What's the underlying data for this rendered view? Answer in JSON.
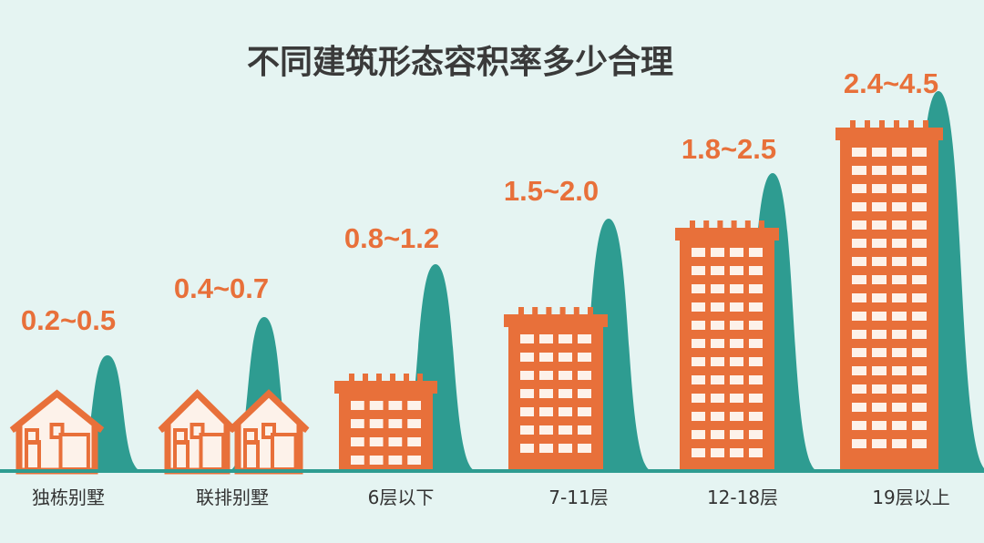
{
  "title": "不同建筑形态容积率多少合理",
  "items": [
    {
      "range": "0.2~0.5",
      "label": "独栋别墅"
    },
    {
      "range": "0.4~0.7",
      "label": "联排别墅"
    },
    {
      "range": "0.8~1.2",
      "label": "6层以下"
    },
    {
      "range": "1.5~2.0",
      "label": "7-11层"
    },
    {
      "range": "1.8~2.5",
      "label": "12-18层"
    },
    {
      "range": "2.4~4.5",
      "label": "19层以上"
    }
  ]
}
